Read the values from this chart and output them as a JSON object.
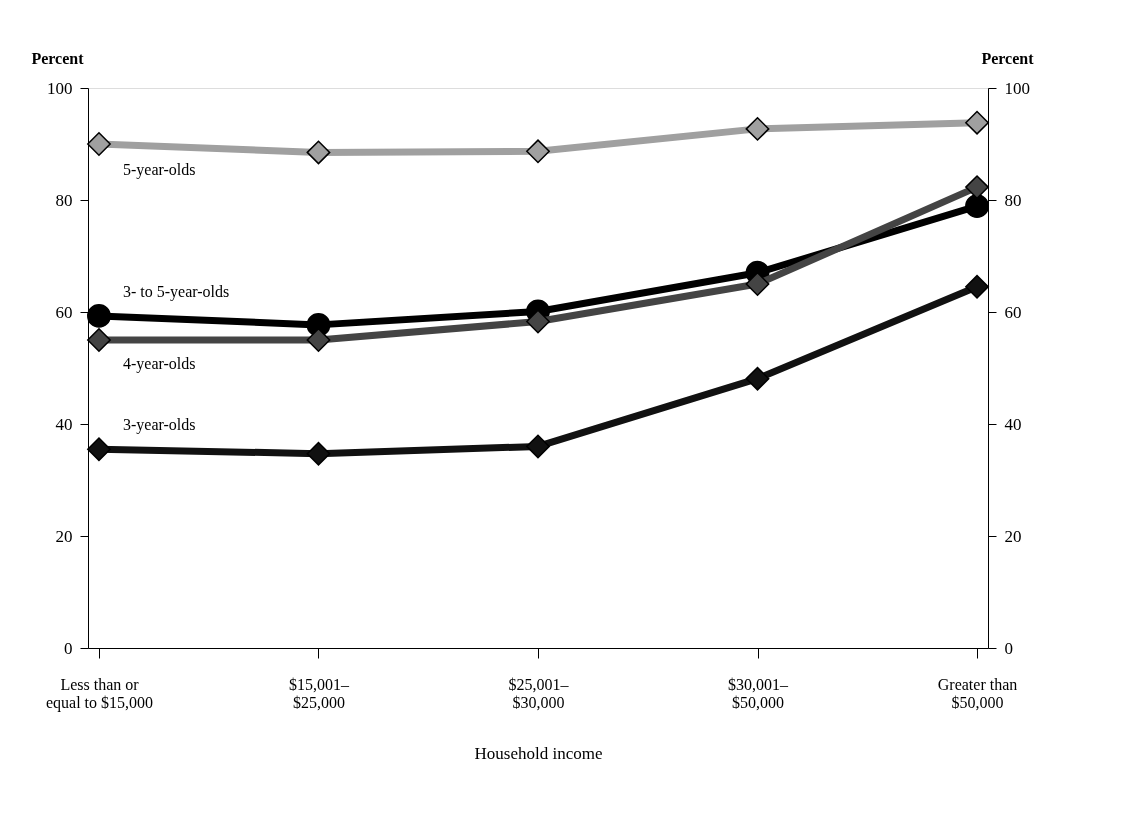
{
  "chart_data": {
    "type": "line",
    "xlabel": "Household income",
    "ylabel": "Percent",
    "y2label": "Percent",
    "categories": [
      "Less than or\nequal to $15,000",
      "$15,001–\n$25,000",
      "$25,001–\n$30,000",
      "$30,001–\n$50,000",
      "Greater than\n$50,000"
    ],
    "ylim": [
      0,
      100
    ],
    "yticks": [
      0,
      20,
      40,
      60,
      80,
      100
    ],
    "y2lim": [
      0,
      100
    ],
    "y2ticks": [
      0,
      20,
      40,
      60,
      80,
      100
    ],
    "grid": false,
    "line_style": "solid",
    "series": [
      {
        "name": "5-year-olds",
        "color": "#a0a0a0",
        "marker": "diamond",
        "values": [
          90,
          88.5,
          88.7,
          92.7,
          93.8
        ]
      },
      {
        "name": "3- to 5-year-olds",
        "color": "#000000",
        "marker": "circle",
        "values": [
          59.3,
          57.7,
          60.1,
          67,
          78.9
        ]
      },
      {
        "name": "4-year-olds",
        "color": "#444444",
        "marker": "diamond",
        "values": [
          55,
          55,
          58.3,
          65,
          82.3
        ]
      },
      {
        "name": "3-year-olds",
        "color": "#111111",
        "marker": "diamond",
        "values": [
          35.5,
          34.7,
          36,
          48.1,
          64.5
        ]
      }
    ]
  }
}
